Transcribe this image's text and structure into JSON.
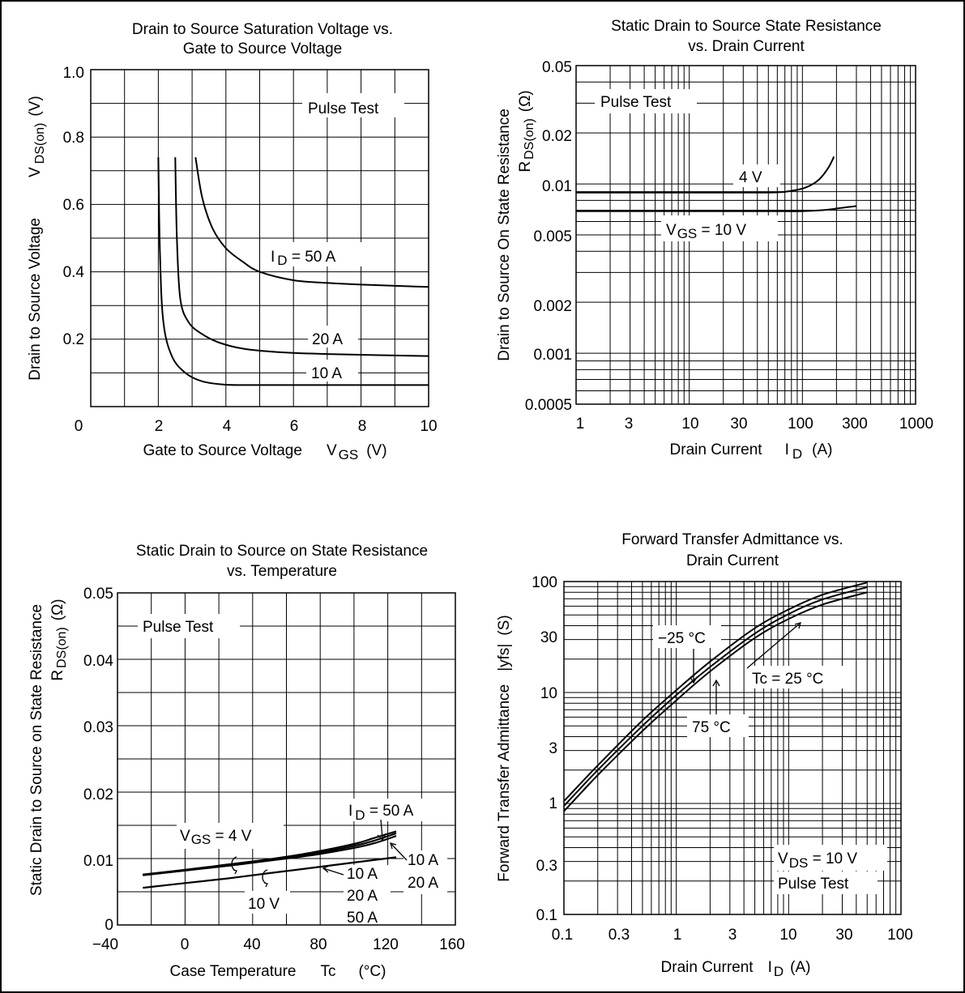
{
  "chart_data": [
    {
      "id": "vds_vs_vgs",
      "type": "line",
      "title_lines": [
        "Drain to Source Saturation Voltage vs.",
        "Gate to Source Voltage"
      ],
      "xlabel": {
        "text": "Gate to Source Voltage",
        "sym": "V",
        "sub": "GS",
        "unit": "(V)"
      },
      "ylabel": {
        "text": "Drain to Source Voltage",
        "sym": "V",
        "sub": "DS(on)",
        "unit": "(V)"
      },
      "xlim": [
        0,
        10
      ],
      "ylim": [
        0,
        1.0
      ],
      "x_ticks": [
        "0",
        "2",
        "4",
        "6",
        "8",
        "10"
      ],
      "y_ticks": [
        "0.2",
        "0.4",
        "0.6",
        "0.8",
        "1.0"
      ],
      "grid": true,
      "annotations": [
        "Pulse Test",
        "I D = 50 A",
        "20 A",
        "10 A"
      ],
      "series": [
        {
          "name": "I D = 50 A",
          "x": [
            3.1,
            3.3,
            3.6,
            4.0,
            4.5,
            5.0,
            6.0,
            7.0,
            8.0,
            10.0
          ],
          "y": [
            0.74,
            0.62,
            0.53,
            0.47,
            0.43,
            0.4,
            0.375,
            0.367,
            0.362,
            0.355
          ]
        },
        {
          "name": "20 A",
          "x": [
            2.5,
            2.55,
            2.65,
            2.9,
            3.3,
            3.8,
            4.5,
            5.5,
            7.0,
            10.0
          ],
          "y": [
            0.74,
            0.5,
            0.32,
            0.25,
            0.215,
            0.19,
            0.172,
            0.162,
            0.156,
            0.15
          ]
        },
        {
          "name": "10 A",
          "x": [
            2.0,
            2.05,
            2.15,
            2.4,
            2.8,
            3.3,
            4.0,
            5.0,
            7.0,
            10.0
          ],
          "y": [
            0.74,
            0.45,
            0.25,
            0.15,
            0.1,
            0.075,
            0.065,
            0.064,
            0.064,
            0.064
          ]
        }
      ]
    },
    {
      "id": "rds_vs_id",
      "type": "line",
      "log_x": true,
      "log_y": true,
      "title_lines": [
        "Static Drain to Source State Resistance",
        "vs. Drain Current"
      ],
      "xlabel": {
        "text": "Drain Current",
        "sym": "I",
        "sub": "D",
        "unit": "(A)"
      },
      "ylabel": {
        "text": "Drain to Source On State Resistance",
        "sym": "R",
        "sub": "DS(on)",
        "unit": "(Ω)"
      },
      "xlim": [
        1,
        1000
      ],
      "ylim": [
        0.0005,
        0.05
      ],
      "x_ticks": [
        "1",
        "3",
        "10",
        "30",
        "100",
        "300",
        "1000"
      ],
      "y_ticks": [
        "0.0005",
        "0.001",
        "0.002",
        "0.005",
        "0.01",
        "0.02",
        "0.05"
      ],
      "grid": true,
      "annotations": [
        "Pulse Test",
        "4 V",
        "V GS = 10 V"
      ],
      "series": [
        {
          "name": "4 V",
          "x": [
            1,
            10,
            50,
            80,
            110,
            140,
            170,
            190
          ],
          "y": [
            0.0089,
            0.0089,
            0.0089,
            0.0091,
            0.0096,
            0.0106,
            0.0125,
            0.0145
          ]
        },
        {
          "name": "V GS = 10 V",
          "x": [
            1,
            10,
            60,
            100,
            150,
            200,
            300
          ],
          "y": [
            0.0069,
            0.0069,
            0.0069,
            0.0069,
            0.007,
            0.00715,
            0.0074
          ]
        }
      ]
    },
    {
      "id": "rds_vs_tc",
      "type": "line",
      "title_lines": [
        "Static Drain to Source on State Resistance",
        "vs. Temperature"
      ],
      "xlabel": {
        "text": "Case Temperature",
        "sym": "Tc",
        "unit": "(°C)"
      },
      "ylabel": {
        "text": "Static Drain to Source on State Resistance",
        "sym": "R",
        "sub": "DS(on)",
        "unit": "(Ω)"
      },
      "xlim": [
        -40,
        160
      ],
      "ylim": [
        0,
        0.05
      ],
      "x_ticks": [
        "−40",
        "0",
        "40",
        "80",
        "120",
        "160"
      ],
      "y_ticks": [
        "0",
        "0.01",
        "0.02",
        "0.03",
        "0.04",
        "0.05"
      ],
      "grid": true,
      "annotations": [
        "Pulse Test",
        "I D = 50 A",
        "V GS = 4 V",
        "10 V",
        "10 A",
        "20 A",
        "10 A",
        "20 A",
        "50 A"
      ],
      "series": [
        {
          "name": "V GS = 4 V, I D = 10 A",
          "x": [
            -25,
            0,
            25,
            50,
            75,
            100,
            112,
            125
          ],
          "y": [
            0.0075,
            0.0082,
            0.0089,
            0.0097,
            0.0105,
            0.0116,
            0.0123,
            0.0134
          ]
        },
        {
          "name": "V GS = 4 V, I D = 20 A",
          "x": [
            -25,
            0,
            25,
            50,
            75,
            100,
            112,
            125
          ],
          "y": [
            0.0075,
            0.0082,
            0.009,
            0.0098,
            0.0107,
            0.0119,
            0.0127,
            0.0138
          ]
        },
        {
          "name": "V GS = 4 V, I D = 50 A",
          "x": [
            -25,
            0,
            25,
            50,
            75,
            100,
            112,
            125
          ],
          "y": [
            0.0076,
            0.0083,
            0.0091,
            0.0099,
            0.0109,
            0.0122,
            0.0131,
            0.0141
          ]
        },
        {
          "name": "V GS = 10 V",
          "x": [
            -25,
            0,
            25,
            50,
            75,
            100,
            125
          ],
          "y": [
            0.0056,
            0.0063,
            0.007,
            0.0078,
            0.0086,
            0.0094,
            0.0102
          ]
        }
      ]
    },
    {
      "id": "yfs_vs_id",
      "type": "line",
      "log_x": true,
      "log_y": true,
      "title_lines": [
        "Forward Transfer Admittance vs.",
        "Drain Current"
      ],
      "xlabel": {
        "text": "Drain Current",
        "sym": "I",
        "sub": "D",
        "unit": "(A)"
      },
      "ylabel": {
        "text": "Forward Transfer Admittance",
        "sym": "|yfs|",
        "unit": "(S)"
      },
      "xlim": [
        0.1,
        100
      ],
      "ylim": [
        0.1,
        100
      ],
      "x_ticks": [
        "0.1",
        "0.3",
        "1",
        "3",
        "10",
        "30",
        "100"
      ],
      "y_ticks": [
        "0.1",
        "0.3",
        "1",
        "3",
        "10",
        "30",
        "100"
      ],
      "grid": true,
      "annotations": [
        "−25 °C",
        "Tc = 25 °C",
        "75 °C",
        "V DS = 10 V",
        "Pulse Test"
      ],
      "series": [
        {
          "name": "−25 °C",
          "x": [
            0.1,
            0.2,
            0.5,
            1,
            2,
            5,
            10,
            20,
            50
          ],
          "y": [
            1.05,
            2.2,
            5.6,
            10.5,
            19,
            38,
            56,
            76,
            98
          ]
        },
        {
          "name": "Tc = 25 °C",
          "x": [
            0.1,
            0.2,
            0.5,
            1,
            2,
            5,
            10,
            20,
            50
          ],
          "y": [
            0.95,
            2.0,
            5.0,
            9.5,
            17,
            34,
            51,
            69,
            89
          ]
        },
        {
          "name": "75 °C",
          "x": [
            0.1,
            0.2,
            0.5,
            1,
            2,
            5,
            10,
            20,
            50
          ],
          "y": [
            0.85,
            1.8,
            4.5,
            8.5,
            15.5,
            31,
            46,
            62,
            80
          ]
        }
      ]
    }
  ]
}
